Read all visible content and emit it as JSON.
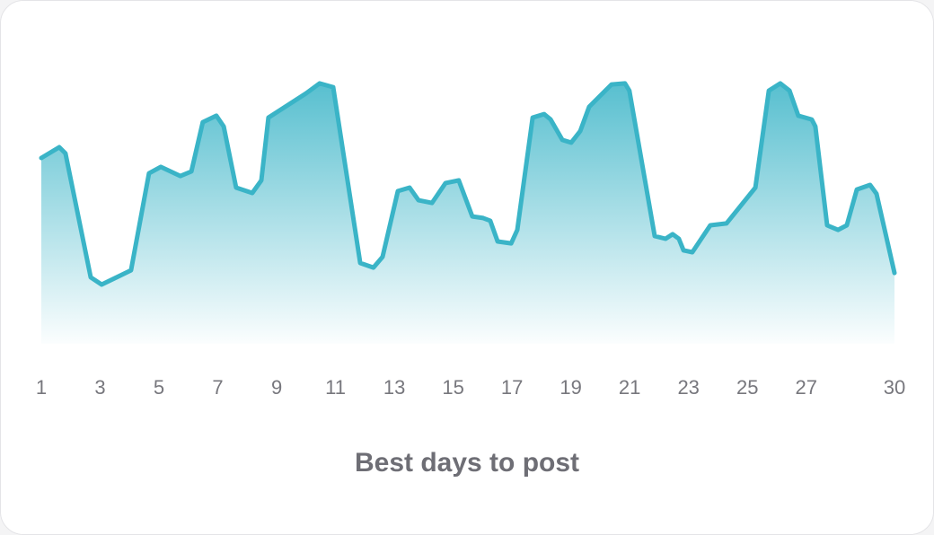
{
  "chart_data": {
    "type": "area",
    "title": "Best days to post",
    "x": [
      1.0,
      1.61,
      1.82,
      2.68,
      3.05,
      4.05,
      4.66,
      5.06,
      5.73,
      6.1,
      6.49,
      6.95,
      7.2,
      7.62,
      8.17,
      8.48,
      8.72,
      10.0,
      10.46,
      10.92,
      11.84,
      12.29,
      12.6,
      13.12,
      13.52,
      13.82,
      14.28,
      14.74,
      15.19,
      15.65,
      16.02,
      16.26,
      16.51,
      16.97,
      17.18,
      17.7,
      18.09,
      18.31,
      18.71,
      19.01,
      19.32,
      19.62,
      20.38,
      20.84,
      20.99,
      21.85,
      22.22,
      22.46,
      22.67,
      22.83,
      23.13,
      23.74,
      24.29,
      25.27,
      25.73,
      26.12,
      26.43,
      26.73,
      27.19,
      27.31,
      27.71,
      28.08,
      28.38,
      28.72,
      29.17,
      29.39,
      30.0
    ],
    "values": [
      69.0,
      73.0,
      70.7,
      24.7,
      22.0,
      27.3,
      63.3,
      65.7,
      62.3,
      64.0,
      82.3,
      84.7,
      80.7,
      58.0,
      56.0,
      60.7,
      84.0,
      93.0,
      96.7,
      95.3,
      30.0,
      28.3,
      32.3,
      56.7,
      58.0,
      53.3,
      52.3,
      59.7,
      60.7,
      47.3,
      46.7,
      45.7,
      38.0,
      37.3,
      42.3,
      84.0,
      85.3,
      83.3,
      75.7,
      74.7,
      79.0,
      88.0,
      96.3,
      96.7,
      94.0,
      40.0,
      39.0,
      40.7,
      39.0,
      34.7,
      34.0,
      44.0,
      44.7,
      58.0,
      94.0,
      96.7,
      94.0,
      84.7,
      83.3,
      80.7,
      44.0,
      42.3,
      44.0,
      57.3,
      59.0,
      55.7,
      26.3
    ],
    "color": "#3ab4c7",
    "xlim": [
      1,
      30
    ],
    "xticks": [
      1,
      3,
      5,
      7,
      9,
      11,
      13,
      15,
      17,
      19,
      21,
      23,
      25,
      27,
      30
    ],
    "ylim": [
      0,
      100
    ]
  }
}
